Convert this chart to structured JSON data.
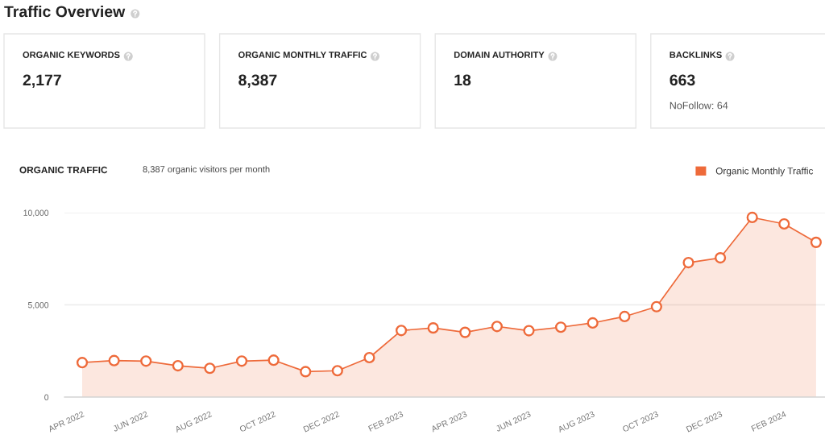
{
  "chart_data": [
    {
      "type": "other",
      "title": "Traffic Overview",
      "categories": [
        "ORGANIC KEYWORDS",
        "ORGANIC MONTHLY TRAFFIC",
        "DOMAIN AUTHORITY",
        "BACKLINKS"
      ],
      "value_labels": [
        "2,177",
        "8,387",
        "18",
        "663"
      ],
      "annotations": [
        "NoFollow: 64"
      ]
    },
    {
      "type": "area",
      "title": "ORGANIC TRAFFIC",
      "subtitle": "8,387 organic visitors per month",
      "categories": [
        "APR 2022",
        null,
        "JUN 2022",
        null,
        "AUG 2022",
        null,
        "OCT 2022",
        null,
        "DEC 2022",
        null,
        "FEB 2023",
        null,
        "APR 2023",
        null,
        "JUN 2023",
        null,
        "AUG 2023",
        null,
        "OCT 2023",
        null,
        "DEC 2023",
        null,
        "FEB 2024",
        null
      ],
      "series": [
        {
          "name": "Organic Monthly Traffic",
          "color": "#ee6a3a",
          "values": [
            1870,
            1980,
            1950,
            1700,
            1560,
            1950,
            2000,
            1380,
            1430,
            2140,
            3610,
            3750,
            3510,
            3830,
            3600,
            3790,
            4020,
            4370,
            4900,
            7290,
            7550,
            9740,
            9390,
            8390
          ]
        }
      ],
      "ylim": [
        0,
        10000
      ],
      "yticks": [
        0,
        {
          "value": 5000,
          "label": "5,000"
        },
        {
          "value": 10000,
          "label": "10,000"
        }
      ],
      "grid": "y",
      "legend": "top right",
      "marker": "circle"
    }
  ]
}
